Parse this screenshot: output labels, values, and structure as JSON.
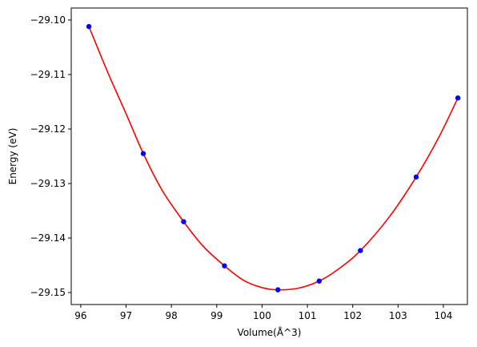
{
  "chart_data": {
    "type": "scatter",
    "title": "",
    "xlabel": "Volume(Å^3)",
    "ylabel": "Energy (eV)",
    "xlim": [
      95.79,
      104.53
    ],
    "ylim": [
      -29.1522,
      -29.0978
    ],
    "x_ticks": [
      96,
      97,
      98,
      99,
      100,
      101,
      102,
      103,
      104
    ],
    "x_tick_labels": [
      "96",
      "97",
      "98",
      "99",
      "100",
      "101",
      "102",
      "103",
      "104"
    ],
    "y_ticks": [
      -29.1,
      -29.11,
      -29.12,
      -29.13,
      -29.14,
      -29.15
    ],
    "y_tick_labels": [
      "−29.10",
      "−29.11",
      "−29.12",
      "−29.13",
      "−29.14",
      "−29.15"
    ],
    "grid": false,
    "legend": "none",
    "series": [
      {
        "kind": "points",
        "color": "#0000ff",
        "x": [
          96.18,
          97.38,
          98.27,
          99.17,
          100.35,
          101.26,
          102.17,
          103.4,
          104.32
        ],
        "y": [
          -29.1012,
          -29.1245,
          -29.137,
          -29.1451,
          -29.1495,
          -29.1479,
          -29.1423,
          -29.1288,
          -29.1143
        ]
      },
      {
        "kind": "fit-curve",
        "color": "#ff0000",
        "x": [
          96.18,
          96.6,
          97.0,
          97.38,
          97.8,
          98.27,
          98.7,
          99.17,
          99.6,
          100.0,
          100.35,
          100.8,
          101.26,
          101.7,
          102.17,
          102.8,
          103.4,
          103.9,
          104.32
        ],
        "y": [
          -29.1012,
          -29.1097,
          -29.1172,
          -29.1245,
          -29.1313,
          -29.137,
          -29.1415,
          -29.1451,
          -29.1478,
          -29.1491,
          -29.1495,
          -29.1492,
          -29.1479,
          -29.1456,
          -29.1423,
          -29.1362,
          -29.1288,
          -29.1215,
          -29.1143
        ]
      }
    ]
  }
}
